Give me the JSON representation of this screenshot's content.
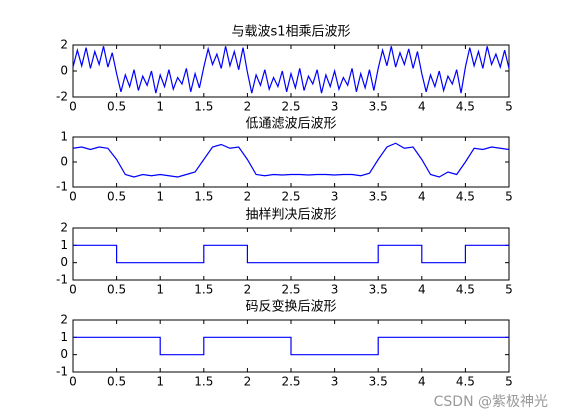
{
  "chart_data": [
    {
      "type": "line",
      "title": "与载波s1相乘后波形",
      "x": [
        0,
        0.05,
        0.1,
        0.15,
        0.2,
        0.25,
        0.3,
        0.35,
        0.4,
        0.45,
        0.5,
        0.55,
        0.6,
        0.65,
        0.7,
        0.75,
        0.8,
        0.85,
        0.9,
        0.95,
        1,
        1.05,
        1.1,
        1.15,
        1.2,
        1.25,
        1.3,
        1.35,
        1.4,
        1.45,
        1.5,
        1.55,
        1.6,
        1.65,
        1.7,
        1.75,
        1.8,
        1.85,
        1.9,
        1.95,
        2,
        2.05,
        2.1,
        2.15,
        2.2,
        2.25,
        2.3,
        2.35,
        2.4,
        2.45,
        2.5,
        2.55,
        2.6,
        2.65,
        2.7,
        2.75,
        2.8,
        2.85,
        2.9,
        2.95,
        3,
        3.05,
        3.1,
        3.15,
        3.2,
        3.25,
        3.3,
        3.35,
        3.4,
        3.45,
        3.5,
        3.55,
        3.6,
        3.65,
        3.7,
        3.75,
        3.8,
        3.85,
        3.9,
        3.95,
        4,
        4.05,
        4.1,
        4.15,
        4.2,
        4.25,
        4.3,
        4.35,
        4.4,
        4.45,
        4.5,
        4.55,
        4.6,
        4.65,
        4.7,
        4.75,
        4.8,
        4.85,
        4.9,
        4.95,
        5
      ],
      "series": [
        {
          "color": "#0000ff",
          "values": [
            0.3,
            1.6,
            0.4,
            1.8,
            0.2,
            1.5,
            0.5,
            1.9,
            0.3,
            1.4,
            -0.2,
            -1.6,
            -0.3,
            -1.2,
            0.1,
            -1.5,
            -0.4,
            -1.1,
            0.0,
            -1.7,
            -0.3,
            -1.2,
            0.1,
            -1.4,
            -0.5,
            -1.0,
            0.2,
            -1.6,
            -0.2,
            -1.3,
            0.3,
            1.7,
            0.5,
            1.3,
            0.2,
            1.9,
            0.4,
            1.5,
            0.1,
            1.8,
            -0.1,
            -1.7,
            -0.3,
            -1.1,
            0.1,
            -1.4,
            -0.5,
            -1.2,
            0.0,
            -1.6,
            -0.2,
            -1.3,
            0.2,
            -1.5,
            -0.4,
            -1.0,
            0.1,
            -1.7,
            -0.3,
            -1.2,
            0.0,
            -1.4,
            -0.5,
            -1.1,
            0.2,
            -1.6,
            -0.2,
            -1.3,
            0.1,
            -1.5,
            0.2,
            1.6,
            0.4,
            1.9,
            0.3,
            1.4,
            0.5,
            1.7,
            0.2,
            1.5,
            -0.2,
            -1.6,
            -0.3,
            -1.2,
            0.0,
            -1.5,
            -0.4,
            -1.0,
            0.1,
            -1.7,
            0.3,
            1.8,
            0.4,
            1.5,
            0.2,
            1.9,
            0.5,
            1.3,
            0.3,
            1.6,
            0.2
          ]
        }
      ],
      "xlim": [
        0,
        5
      ],
      "xticks": [
        0,
        0.5,
        1,
        1.5,
        2,
        2.5,
        3,
        3.5,
        4,
        4.5,
        5
      ],
      "ylim": [
        -2,
        2
      ],
      "yticks": [
        -2,
        0,
        2
      ]
    },
    {
      "type": "line",
      "title": "低通滤波后波形",
      "x": [
        0,
        0.1,
        0.2,
        0.3,
        0.4,
        0.5,
        0.6,
        0.7,
        0.8,
        0.9,
        1,
        1.1,
        1.2,
        1.3,
        1.4,
        1.5,
        1.6,
        1.7,
        1.8,
        1.9,
        2,
        2.1,
        2.2,
        2.3,
        2.4,
        2.5,
        2.6,
        2.7,
        2.8,
        2.9,
        3,
        3.1,
        3.2,
        3.3,
        3.4,
        3.5,
        3.6,
        3.7,
        3.8,
        3.9,
        4,
        4.1,
        4.2,
        4.3,
        4.4,
        4.5,
        4.6,
        4.7,
        4.8,
        4.9,
        5
      ],
      "series": [
        {
          "color": "#0000ff",
          "values": [
            0.55,
            0.6,
            0.5,
            0.6,
            0.55,
            0.1,
            -0.5,
            -0.6,
            -0.5,
            -0.55,
            -0.5,
            -0.55,
            -0.6,
            -0.5,
            -0.4,
            0.1,
            0.6,
            0.7,
            0.55,
            0.6,
            0.1,
            -0.5,
            -0.55,
            -0.5,
            -0.52,
            -0.5,
            -0.5,
            -0.52,
            -0.5,
            -0.5,
            -0.52,
            -0.5,
            -0.5,
            -0.55,
            -0.45,
            0.1,
            0.6,
            0.75,
            0.55,
            0.6,
            0.1,
            -0.5,
            -0.6,
            -0.4,
            -0.5,
            0.0,
            0.55,
            0.5,
            0.6,
            0.55,
            0.5
          ]
        }
      ],
      "xlim": [
        0,
        5
      ],
      "xticks": [
        0,
        0.5,
        1,
        1.5,
        2,
        2.5,
        3,
        3.5,
        4,
        4.5,
        5
      ],
      "ylim": [
        -1,
        1
      ],
      "yticks": [
        -1,
        0,
        1
      ]
    },
    {
      "type": "line",
      "title": "抽样判决后波形",
      "x": [
        0,
        0.5,
        0.5,
        1.5,
        1.5,
        2,
        2,
        3.5,
        3.5,
        4,
        4,
        4.5,
        4.5,
        5
      ],
      "series": [
        {
          "color": "#0000ff",
          "values": [
            1,
            1,
            0,
            0,
            1,
            1,
            0,
            0,
            1,
            1,
            0,
            0,
            1,
            1
          ]
        }
      ],
      "xlim": [
        0,
        5
      ],
      "xticks": [
        0,
        0.5,
        1,
        1.5,
        2,
        2.5,
        3,
        3.5,
        4,
        4.5,
        5
      ],
      "ylim": [
        -1,
        2
      ],
      "yticks": [
        -1,
        0,
        1,
        2
      ]
    },
    {
      "type": "line",
      "title": "码反变换后波形",
      "x": [
        0,
        1,
        1,
        1.5,
        1.5,
        2.5,
        2.5,
        3.5,
        3.5,
        5
      ],
      "series": [
        {
          "color": "#0000ff",
          "values": [
            1,
            1,
            0,
            0,
            1,
            1,
            0,
            0,
            1,
            1
          ]
        }
      ],
      "xlim": [
        0,
        5
      ],
      "xticks": [
        0,
        0.5,
        1,
        1.5,
        2,
        2.5,
        3,
        3.5,
        4,
        4.5,
        5
      ],
      "ylim": [
        -1,
        2
      ],
      "yticks": [
        -1,
        0,
        1,
        2
      ]
    }
  ],
  "watermark": "CSDN @紫极神光"
}
